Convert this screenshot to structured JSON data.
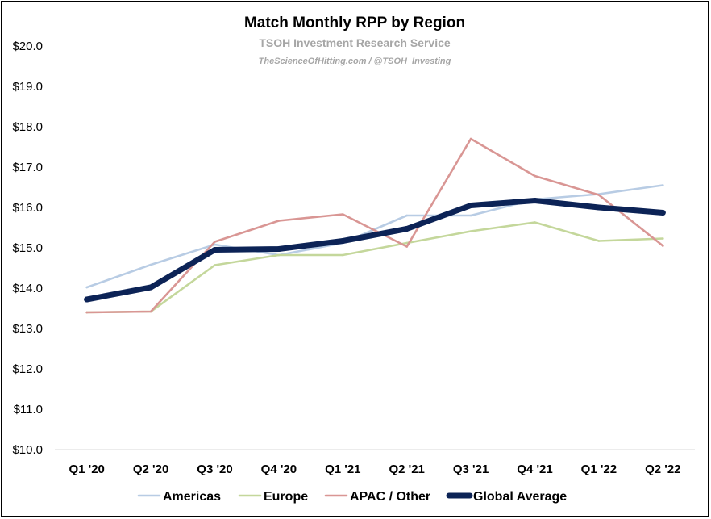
{
  "chart_data": {
    "type": "line",
    "title": "Match Monthly RPP by Region",
    "subtitle": "TSOH Investment Research Service",
    "credit": "TheScienceOfHitting.com / @TSOH_Investing",
    "xlabel": "",
    "ylabel": "",
    "categories": [
      "Q1 '20",
      "Q2 '20",
      "Q3 '20",
      "Q4 '20",
      "Q1 '21",
      "Q2 '21",
      "Q3 '21",
      "Q4 '21",
      "Q1 '22",
      "Q2 '22"
    ],
    "ylim": [
      10.0,
      20.0
    ],
    "yticks": [
      10.0,
      11.0,
      12.0,
      13.0,
      14.0,
      15.0,
      16.0,
      17.0,
      18.0,
      19.0,
      20.0
    ],
    "ytick_labels": [
      "$10.0",
      "$11.0",
      "$12.0",
      "$13.0",
      "$14.0",
      "$15.0",
      "$16.0",
      "$17.0",
      "$18.0",
      "$19.0",
      "$20.0"
    ],
    "grid": false,
    "legend_position": "bottom",
    "series": [
      {
        "name": "Americas",
        "color": "#b8cce4",
        "width": "thin",
        "values": [
          14.02,
          14.58,
          15.08,
          14.82,
          15.12,
          15.8,
          15.8,
          16.2,
          16.33,
          16.55
        ]
      },
      {
        "name": "Europe",
        "color": "#c4d79b",
        "width": "thin",
        "values": [
          13.4,
          13.42,
          14.57,
          14.82,
          14.82,
          15.12,
          15.41,
          15.63,
          15.17,
          15.23
        ]
      },
      {
        "name": "APAC / Other",
        "color": "#d99694",
        "width": "thin",
        "values": [
          13.4,
          13.42,
          15.15,
          15.67,
          15.83,
          15.03,
          17.7,
          16.78,
          16.31,
          15.05
        ]
      },
      {
        "name": "Global Average",
        "color": "#0c2356",
        "width": "thick",
        "values": [
          13.72,
          14.02,
          14.95,
          14.97,
          15.17,
          15.47,
          16.05,
          16.17,
          16.0,
          15.87
        ]
      }
    ]
  }
}
